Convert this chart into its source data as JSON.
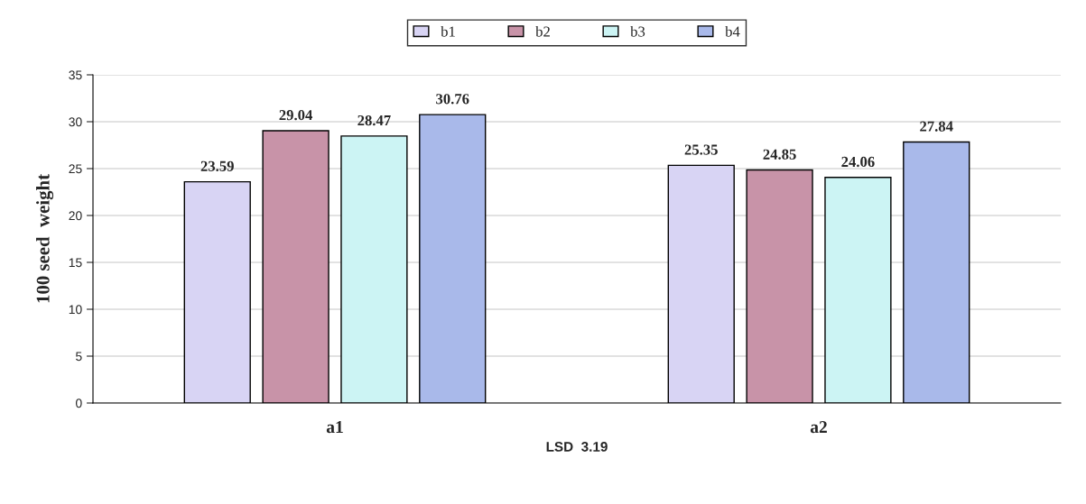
{
  "chart_data": {
    "type": "bar",
    "xlabel": "LSD  3.19",
    "ylabel": "100 seed  weight",
    "categories": [
      "a1",
      "a2"
    ],
    "series": [
      {
        "name": "b1",
        "color": "#d8d4f4",
        "values": [
          23.59,
          25.35
        ]
      },
      {
        "name": "b2",
        "color": "#c893a8",
        "values": [
          29.04,
          24.85
        ]
      },
      {
        "name": "b3",
        "color": "#ccf4f4",
        "values": [
          28.47,
          24.06
        ]
      },
      {
        "name": "b4",
        "color": "#a9b9ea",
        "values": [
          30.76,
          27.84
        ]
      }
    ],
    "ylim": [
      0,
      35
    ],
    "yticks": [
      0,
      5,
      10,
      15,
      20,
      25,
      30,
      35
    ],
    "grid": "y",
    "legend": "top",
    "data_labels": true
  }
}
